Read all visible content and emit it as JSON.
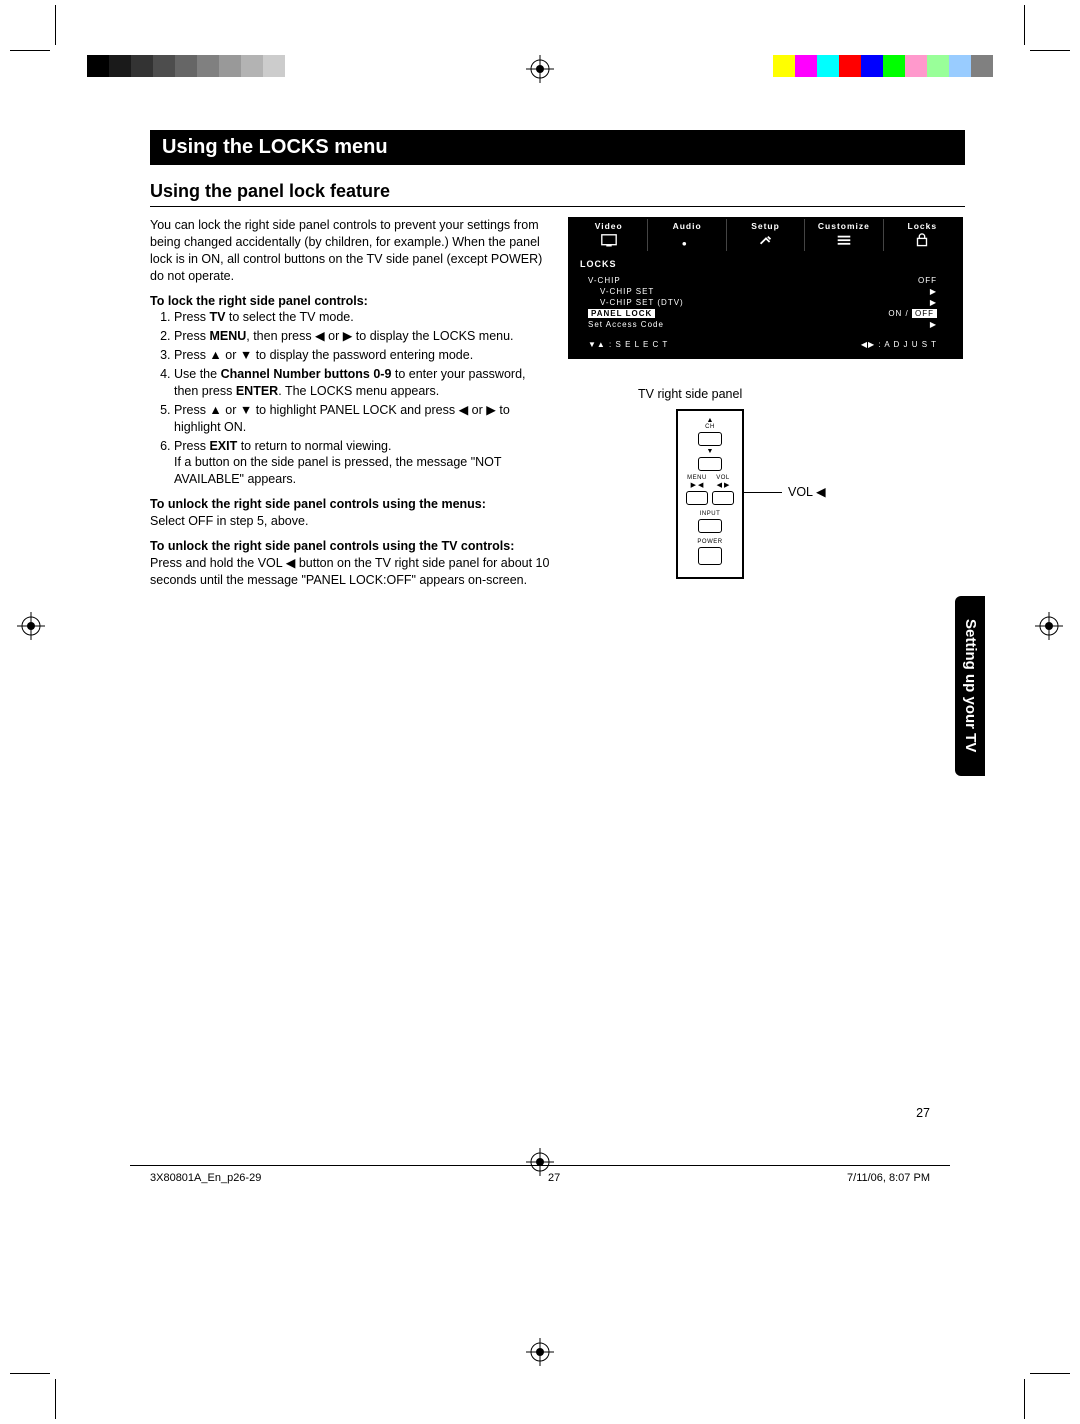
{
  "crop_marks": {
    "color": "#000000"
  },
  "reg_marks": {
    "stroke": "#000000"
  },
  "color_bars_left": [
    "#000000",
    "#1a1a1a",
    "#333333",
    "#4d4d4d",
    "#666666",
    "#808080",
    "#999999",
    "#b3b3b3",
    "#cccccc",
    "#ffffff"
  ],
  "color_bars_right": [
    "#ffff00",
    "#ff00ff",
    "#00ffff",
    "#ff0000",
    "#0000ff",
    "#00ff00",
    "#ff99cc",
    "#99ff99",
    "#99ccff",
    "#808080"
  ],
  "header": "Using the LOCKS menu",
  "subheader": "Using the panel lock feature",
  "intro": "You can lock the right side panel controls to prevent your settings from being changed accidentally (by children, for example.) When the panel lock is in ON, all control buttons on the TV side panel (except POWER) do not operate.",
  "lock_head": "To lock the right side panel controls:",
  "steps": {
    "s1a": "Press ",
    "s1_tv": "TV",
    "s1b": " to select the TV mode.",
    "s2a": "Press ",
    "s2_menu": "MENU",
    "s2b": ", then press ◀ or ▶ to display the LOCKS menu.",
    "s3": "Press ▲ or ▼ to display the password entering mode.",
    "s4a": "Use the ",
    "s4_cnb": "Channel Number buttons 0-9",
    "s4b": " to enter your password, then press ",
    "s4_enter": "ENTER",
    "s4c": ". The LOCKS menu appears.",
    "s5": "Press ▲ or ▼ to highlight PANEL LOCK and press ◀ or ▶ to highlight ON.",
    "s6a": "Press ",
    "s6_exit": "EXIT",
    "s6b": " to return to normal viewing.",
    "s6c": "If a button on the side panel is pressed, the message \"NOT AVAILABLE\" appears."
  },
  "unlock_menu_head": "To unlock the right side panel controls using the menus:",
  "unlock_menu_body": "Select OFF in step 5, above.",
  "unlock_tv_head": "To unlock the right side panel controls using the TV controls:",
  "unlock_tv_body": "Press and hold the VOL ◀ button on the TV right side panel for about 10 seconds until the message \"PANEL LOCK:OFF\" appears on-screen.",
  "menu": {
    "tabs": [
      "Video",
      "Audio",
      "Setup",
      "Customize",
      "Locks"
    ],
    "section": "LOCKS",
    "rows": [
      {
        "label": "V-CHIP",
        "val": "OFF",
        "sub": false
      },
      {
        "label": "V-CHIP SET",
        "val": "▶",
        "sub": true
      },
      {
        "label": "V-CHIP SET (DTV)",
        "val": "▶",
        "sub": true
      },
      {
        "label": "PANEL LOCK",
        "val_a": "ON / ",
        "val_b": "OFF",
        "sub": false,
        "panel": true
      },
      {
        "label": "Set Access Code",
        "val": "▶",
        "sub": false
      }
    ],
    "foot_select": "▼▲ : S E L E C T",
    "foot_adjust": "◀▶ : A D J U S T"
  },
  "panel_caption": "TV right side panel",
  "panel": {
    "ch": "CH",
    "menu": "MENU",
    "vol": "VOL",
    "input": "INPUT",
    "power": "POWER"
  },
  "vol_annot": "VOL ◀",
  "side_tab": "Setting up your TV",
  "page_number": "27",
  "footer": {
    "file": "3X80801A_En_p26-29",
    "pg": "27",
    "date": "7/11/06, 8:07 PM"
  }
}
